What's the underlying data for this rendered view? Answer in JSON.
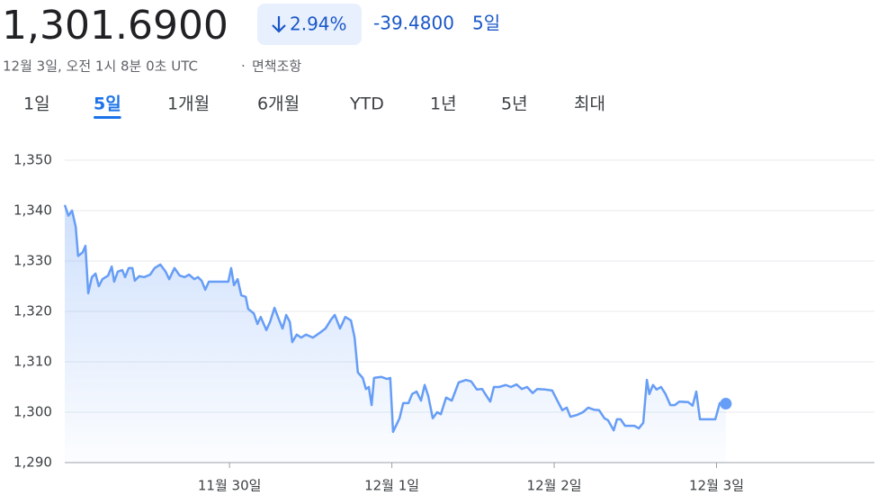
{
  "header": {
    "price": "1,301.6900",
    "change_percent": "2.94%",
    "change": "-39.4800",
    "period": "5일",
    "timestamp": "12월 3일, 오전 1시 8분 0초 UTC",
    "separator": "·",
    "disclaimer": "면책조항"
  },
  "tabs": {
    "items": [
      "1일",
      "5일",
      "1개월",
      "6개월",
      "YTD",
      "1년",
      "5년",
      "최대"
    ],
    "selected": 1
  },
  "chart_data": {
    "type": "line",
    "color": "#669df6",
    "x": [
      0,
      0.9,
      1.8,
      2.7,
      3.3,
      4.4,
      5.1,
      5.8,
      6.7,
      7.6,
      8.4,
      9.3,
      10.7,
      11.6,
      12.2,
      13.1,
      14.2,
      14.9,
      15.8,
      16.7,
      17.3,
      18.4,
      19.6,
      21.1,
      22.2,
      23.6,
      24.9,
      25.8,
      27.1,
      28.4,
      29.6,
      30.7,
      32,
      32.9,
      33.8,
      34.7,
      35.6,
      40.4,
      41.1,
      41.8,
      42.7,
      43.6,
      44.7,
      45.3,
      46.7,
      47.6,
      48.4,
      49.8,
      50.7,
      51.8,
      52.9,
      53.8,
      54.7,
      55.6,
      56.2,
      57.3,
      58.4,
      59.6,
      61.3,
      62.9,
      64.4,
      65.8,
      66.7,
      68,
      69.3,
      70.7,
      71.6,
      72.4,
      73.6,
      74.4,
      75.1,
      75.8,
      76.4,
      78.2,
      79.6,
      80.4,
      81.1,
      82.7,
      83.6,
      84.9,
      85.8,
      86.9,
      88,
      88.9,
      89.8,
      90.9,
      92,
      92.9,
      94.2,
      95.6,
      97.3,
      99.1,
      100.4,
      101.8,
      103.1,
      104.2,
      105.1,
      106,
      107.3,
      108.9,
      110.2,
      111.6,
      112.9,
      114.2,
      115.6,
      116.7,
      118.7,
      120.4,
      121.8,
      122.9,
      124,
      124.9,
      126.7,
      128,
      129.3,
      130.7,
      132,
      133.3,
      134.2,
      135.6,
      136.4,
      137.3,
      138.4,
      140.7,
      141.8,
      142.9,
      143.8,
      144.4,
      145.3,
      146.2,
      147.3,
      148.4,
      149.6,
      150.7,
      151.8,
      154,
      155.1,
      156,
      156.9,
      160.7,
      161.8,
      163.3
    ],
    "values": [
      1341.1,
      1339,
      1340,
      1336.8,
      1331,
      1331.7,
      1333,
      1323.6,
      1326.8,
      1327.5,
      1325,
      1326.4,
      1327.1,
      1328.9,
      1325.9,
      1327.9,
      1328.2,
      1326.8,
      1328.6,
      1328.6,
      1326.1,
      1327,
      1326.8,
      1327.3,
      1328.6,
      1329.3,
      1327.9,
      1326.4,
      1328.6,
      1327.1,
      1326.8,
      1327.3,
      1326.4,
      1326.8,
      1326.1,
      1324.3,
      1325.9,
      1325.9,
      1328.6,
      1325.2,
      1326.4,
      1323.2,
      1322.9,
      1320.5,
      1319.6,
      1317.5,
      1318.9,
      1316.3,
      1317.9,
      1320.7,
      1318.4,
      1316.6,
      1319.3,
      1317.9,
      1313.9,
      1315.4,
      1314.8,
      1315.4,
      1314.8,
      1315.7,
      1316.6,
      1318.4,
      1319.3,
      1316.6,
      1318.9,
      1318.2,
      1314.8,
      1307.9,
      1306.8,
      1304.6,
      1305,
      1301.4,
      1306.8,
      1307,
      1306.6,
      1306.8,
      1296.1,
      1298.8,
      1301.8,
      1301.8,
      1303.6,
      1304.1,
      1302.3,
      1305.4,
      1303.2,
      1298.8,
      1300,
      1299.6,
      1302.9,
      1302.3,
      1305.9,
      1306.4,
      1306.1,
      1304.5,
      1304.6,
      1303.2,
      1302.1,
      1305,
      1305,
      1305.4,
      1305,
      1305.5,
      1304.6,
      1305,
      1303.8,
      1304.6,
      1304.5,
      1304.3,
      1302.1,
      1300.4,
      1300.9,
      1299.1,
      1299.5,
      1300,
      1300.9,
      1300.5,
      1300.4,
      1298.8,
      1298.4,
      1296.4,
      1298.6,
      1298.6,
      1297.3,
      1297.3,
      1296.8,
      1297.9,
      1306.4,
      1303.6,
      1305.4,
      1304.5,
      1305,
      1303.6,
      1301.4,
      1301.4,
      1302.1,
      1302,
      1301.3,
      1304.1,
      1298.6,
      1298.6,
      1301.8,
      1301.69
    ],
    "xlim": [
      0,
      200
    ],
    "xticks": [
      {
        "value": 40.7,
        "label": "11월 30일"
      },
      {
        "value": 80.8,
        "label": "12월 1일"
      },
      {
        "value": 120.9,
        "label": "12월 2일"
      },
      {
        "value": 161,
        "label": "12월 3일"
      }
    ],
    "ylim": [
      1290,
      1350
    ],
    "yticks": [
      {
        "value": 1290,
        "label": "1,290"
      },
      {
        "value": 1300,
        "label": "1,300"
      },
      {
        "value": 1310,
        "label": "1,310"
      },
      {
        "value": 1320,
        "label": "1,320"
      },
      {
        "value": 1330,
        "label": "1,330"
      },
      {
        "value": 1340,
        "label": "1,340"
      },
      {
        "value": 1350,
        "label": "1,350"
      }
    ],
    "grid": true
  }
}
